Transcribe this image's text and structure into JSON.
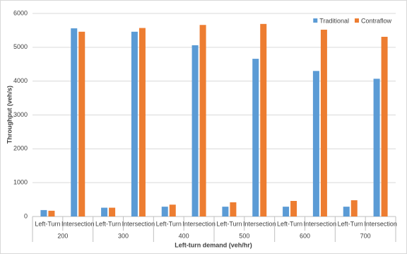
{
  "chart_data": {
    "type": "bar",
    "x_label": "Left-turn demand (veh/hr)",
    "y_label": "Throughput (veh/s)",
    "groups": [
      "200",
      "300",
      "400",
      "500",
      "600",
      "700"
    ],
    "categories": [
      "Left-Turn",
      "Intersection",
      "Left-Turn",
      "Intersection",
      "Left-Turn",
      "Intersection",
      "Left-Turn",
      "Intersection",
      "Left-Turn",
      "Intersection",
      "Left-Turn",
      "Intersection"
    ],
    "series": [
      {
        "name": "Traditional",
        "color": "#5b9bd5",
        "values": [
          190,
          5560,
          260,
          5460,
          290,
          5060,
          290,
          4660,
          290,
          4300,
          290,
          4070
        ]
      },
      {
        "name": "Contraflow",
        "color": "#ed7d31",
        "values": [
          170,
          5460,
          260,
          5570,
          350,
          5660,
          420,
          5690,
          460,
          5520,
          480,
          5310
        ]
      }
    ],
    "ylim": [
      0,
      6000
    ],
    "yticks": [
      0,
      1000,
      2000,
      3000,
      4000,
      5000,
      6000
    ],
    "grid": true,
    "legend": "top-right"
  }
}
